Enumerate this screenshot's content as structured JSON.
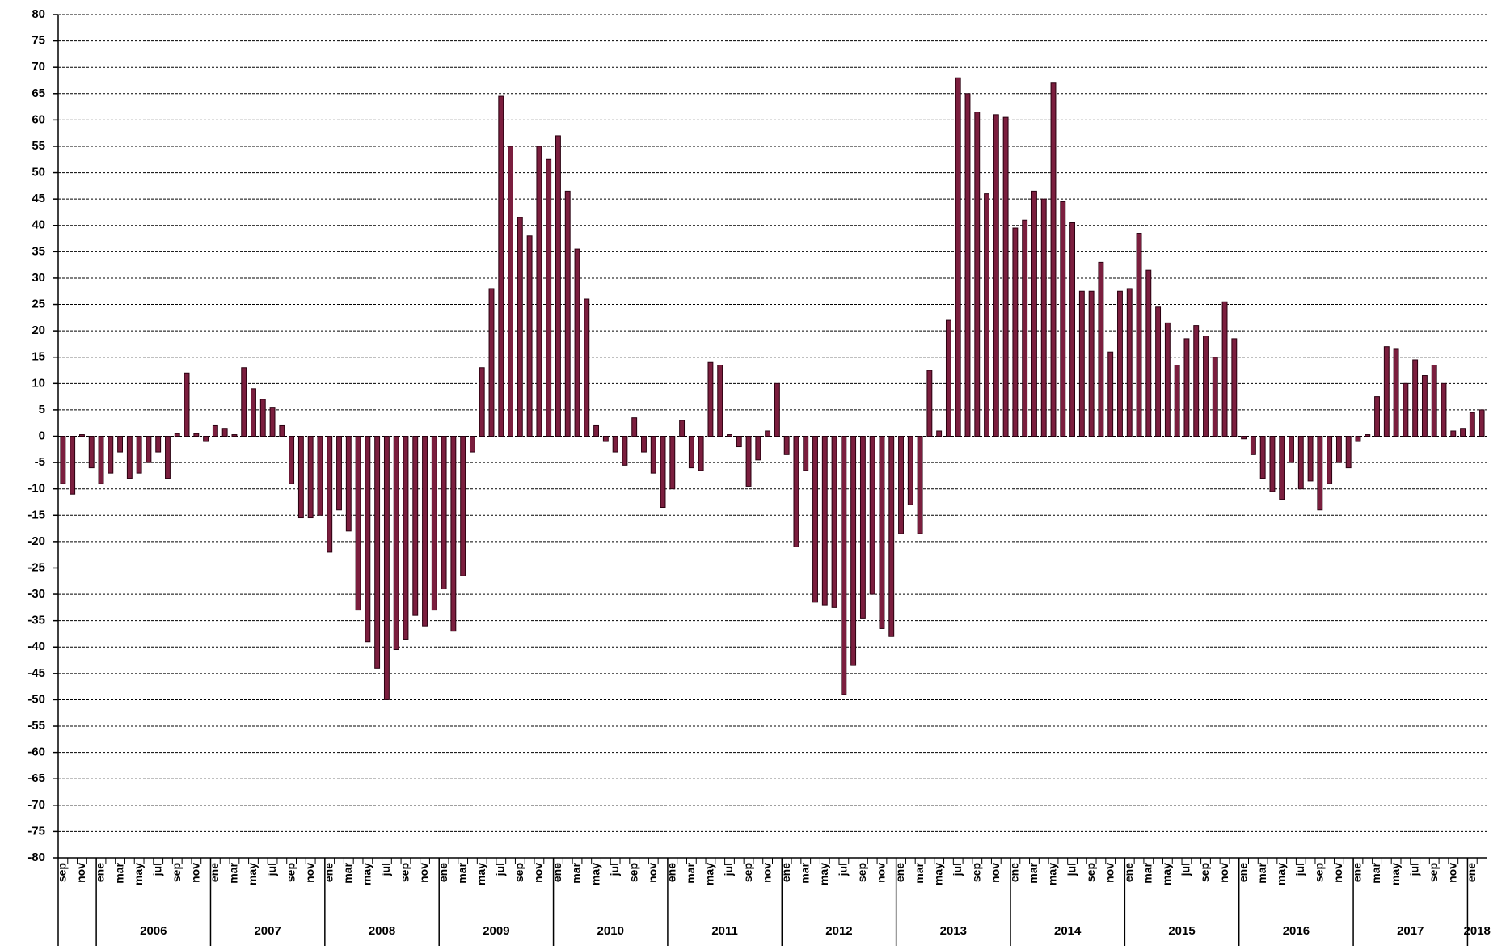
{
  "chart_data": {
    "type": "bar",
    "categories": [
      "sep",
      null,
      "nov",
      null,
      "ene",
      null,
      "mar",
      null,
      "may",
      null,
      "jul",
      null,
      "sep",
      null,
      "nov",
      null,
      "ene",
      null,
      "mar",
      null,
      "may",
      null,
      "jul",
      null,
      "sep",
      null,
      "nov",
      null,
      "ene",
      null,
      "mar",
      null,
      "may",
      null,
      "jul",
      null,
      "sep",
      null,
      "nov",
      null,
      "ene",
      null,
      "mar",
      null,
      "may",
      null,
      "jul",
      null,
      "sep",
      null,
      "nov",
      null,
      "ene",
      null,
      "mar",
      null,
      "may",
      null,
      "jul",
      null,
      "sep",
      null,
      "nov",
      null,
      "ene",
      null,
      "mar",
      null,
      "may",
      null,
      "jul",
      null,
      "sep",
      null,
      "nov",
      null,
      "ene",
      null,
      "mar",
      null,
      "may",
      null,
      "jul",
      null,
      "sep",
      null,
      "nov",
      null,
      "ene",
      null,
      "mar",
      null,
      "may",
      null,
      "jul",
      null,
      "sep",
      null,
      "nov",
      null,
      "ene",
      null,
      "mar",
      null,
      "may",
      null,
      "jul",
      null,
      "sep",
      null,
      "nov",
      null,
      "ene",
      null,
      "mar",
      null,
      "may",
      null,
      "jul",
      null,
      "sep",
      null,
      "nov",
      null,
      "ene",
      null,
      "mar",
      null,
      "may",
      null,
      "jul",
      null,
      "sep",
      null,
      "nov",
      null,
      "ene",
      null,
      "mar",
      null,
      "may",
      null,
      "jul",
      null,
      "sep",
      null,
      "nov",
      null,
      "ene",
      null
    ],
    "year_labels": [
      "2006",
      "2007",
      "2008",
      "2009",
      "2010",
      "2011",
      "2012",
      "2013",
      "2014",
      "2015",
      "2016",
      "2017",
      "2018"
    ],
    "values": [
      -9,
      -11,
      0.3,
      -6,
      -9,
      -7,
      -3,
      -8,
      -7,
      -5,
      -3,
      -8,
      0.5,
      12,
      0.5,
      -1,
      2,
      1.5,
      0.3,
      13,
      9,
      7,
      5.5,
      2,
      -9,
      -15.5,
      -15.5,
      -15,
      -22,
      -14,
      -18,
      -33,
      -39,
      -44,
      -50,
      -40.5,
      -38.5,
      -34,
      -36,
      -33,
      -29,
      -37,
      -26.5,
      -3,
      13,
      28,
      64.5,
      55,
      41.5,
      38,
      55,
      52.5,
      57,
      46.5,
      35.5,
      26,
      2,
      -1,
      -3,
      -5.5,
      3.5,
      -3,
      -7,
      -13.5,
      -10,
      3,
      -6,
      -6.5,
      14,
      13.5,
      0.3,
      -2,
      -9.5,
      -4.5,
      1,
      10,
      -3.5,
      -21,
      -6.5,
      -31.5,
      -32,
      -32.5,
      -49,
      -43.5,
      -34.5,
      -30,
      -36.5,
      -38,
      -18.5,
      -13,
      -18.5,
      12.5,
      1,
      22,
      68,
      65,
      61.5,
      46,
      61,
      60.5,
      39.5,
      41,
      46.5,
      45,
      67,
      44.5,
      40.5,
      27.5,
      27.5,
      33,
      16,
      27.5,
      28,
      38.5,
      31.5,
      24.5,
      21.5,
      13.5,
      18.5,
      21,
      19,
      15,
      25.5,
      18.5,
      -0.5,
      -3.5,
      -8,
      -10.5,
      -12,
      -5,
      -10,
      -8.5,
      -14,
      -9,
      -5,
      -6,
      -1,
      0.3,
      7.5,
      17,
      16.5,
      10,
      14.5,
      11.5,
      13.5,
      10,
      1,
      1.5,
      4.5,
      5
    ],
    "color": "#7b1e3e",
    "ylim": [
      -80,
      80
    ],
    "yticks": [
      -80,
      -75,
      -70,
      -65,
      -60,
      -55,
      -50,
      -45,
      -40,
      -35,
      -30,
      -25,
      -20,
      -15,
      -10,
      -5,
      0,
      5,
      10,
      15,
      20,
      25,
      30,
      35,
      40,
      45,
      50,
      55,
      60,
      65,
      70,
      75,
      80
    ],
    "grid": true
  }
}
